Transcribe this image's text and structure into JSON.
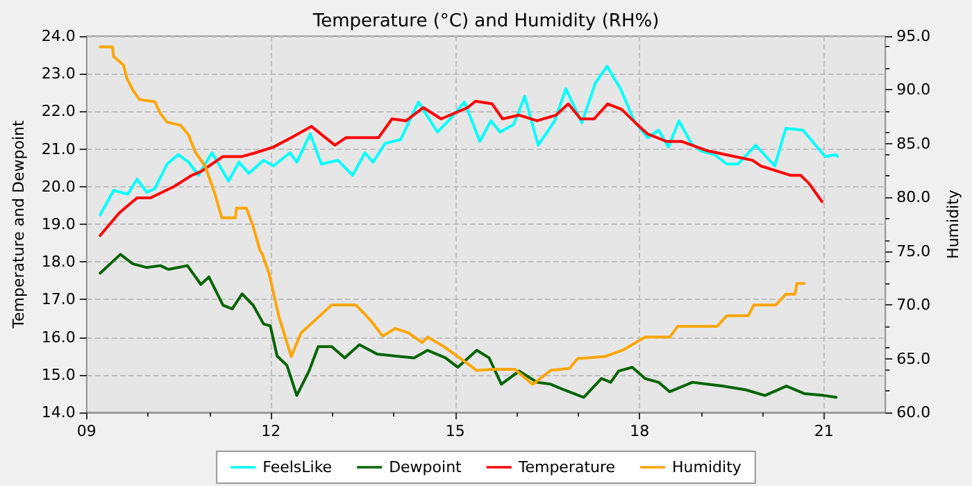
{
  "chart_data": {
    "type": "line",
    "title": "Temperature (°C) and Humidity (RH%)",
    "ylabel": "Temperature and Dewpoint",
    "y2label": "Humidity",
    "xlim": [
      9,
      22
    ],
    "xticks": [
      {
        "value": 9,
        "label": "09"
      },
      {
        "value": 12,
        "label": "12"
      },
      {
        "value": 15,
        "label": "15"
      },
      {
        "value": 18,
        "label": "18"
      },
      {
        "value": 21,
        "label": "21"
      }
    ],
    "ylim": [
      14,
      24
    ],
    "yticks": [
      {
        "value": 14,
        "label": "14.0"
      },
      {
        "value": 15,
        "label": "15.0"
      },
      {
        "value": 16,
        "label": "16.0"
      },
      {
        "value": 17,
        "label": "17.0"
      },
      {
        "value": 18,
        "label": "18.0"
      },
      {
        "value": 19,
        "label": "19.0"
      },
      {
        "value": 20,
        "label": "20.0"
      },
      {
        "value": 21,
        "label": "21.0"
      },
      {
        "value": 22,
        "label": "22.0"
      },
      {
        "value": 23,
        "label": "23.0"
      },
      {
        "value": 24,
        "label": "24.0"
      }
    ],
    "y2lim": [
      60,
      95
    ],
    "y2ticks": [
      {
        "value": 60,
        "label": "60.0"
      },
      {
        "value": 65,
        "label": "65.0"
      },
      {
        "value": 70,
        "label": "70.0"
      },
      {
        "value": 75,
        "label": "75.0"
      },
      {
        "value": 80,
        "label": "80.0"
      },
      {
        "value": 85,
        "label": "85.0"
      },
      {
        "value": 90,
        "label": "90.0"
      },
      {
        "value": 95,
        "label": "95.0"
      }
    ],
    "grid": true,
    "legend": "bottom",
    "marker": "none",
    "line_style": "solid",
    "series": [
      {
        "name": "FeelsLike",
        "color": "#00ffff",
        "x": [
          9.22,
          9.44,
          9.67,
          9.82,
          9.98,
          10.11,
          10.31,
          10.49,
          10.66,
          10.82,
          11.04,
          11.31,
          11.48,
          11.64,
          11.88,
          12.04,
          12.31,
          12.42,
          12.64,
          12.82,
          13.09,
          13.33,
          13.53,
          13.66,
          13.86,
          14.11,
          14.4,
          14.71,
          14.89,
          15.15,
          15.4,
          15.58,
          15.73,
          15.95,
          16.13,
          16.35,
          16.62,
          16.8,
          17.06,
          17.28,
          17.47,
          17.69,
          17.91,
          18.13,
          18.31,
          18.47,
          18.64,
          18.84,
          19.0,
          19.22,
          19.42,
          19.6,
          19.89,
          20.2,
          20.38,
          20.66,
          20.84,
          21.02,
          21.2,
          21.22
        ],
        "values": [
          19.25,
          19.9,
          19.8,
          20.2,
          19.85,
          19.95,
          20.6,
          20.85,
          20.65,
          20.3,
          20.9,
          20.15,
          20.65,
          20.35,
          20.7,
          20.55,
          20.9,
          20.65,
          21.4,
          20.6,
          20.7,
          20.3,
          20.9,
          20.65,
          21.15,
          21.25,
          22.25,
          21.45,
          21.75,
          22.25,
          21.2,
          21.75,
          21.45,
          21.65,
          22.4,
          21.1,
          21.75,
          22.6,
          21.7,
          22.75,
          23.2,
          22.6,
          21.75,
          21.3,
          21.5,
          21.05,
          21.75,
          21.15,
          20.95,
          20.85,
          20.6,
          20.6,
          21.1,
          20.55,
          21.55,
          21.5,
          21.15,
          20.8,
          20.85,
          20.8
        ]
      },
      {
        "name": "Dewpoint",
        "color": "#006400",
        "x": [
          9.22,
          9.55,
          9.75,
          9.98,
          10.2,
          10.33,
          10.64,
          10.86,
          10.99,
          11.22,
          11.37,
          11.53,
          11.71,
          11.88,
          11.99,
          12.1,
          12.26,
          12.42,
          12.62,
          12.77,
          12.99,
          13.2,
          13.44,
          13.73,
          14.02,
          14.33,
          14.55,
          14.84,
          15.04,
          15.35,
          15.55,
          15.75,
          16.04,
          16.33,
          16.55,
          16.77,
          17.09,
          17.38,
          17.53,
          17.66,
          17.88,
          18.09,
          18.31,
          18.49,
          18.86,
          19.35,
          19.73,
          20.04,
          20.39,
          20.68,
          21.0,
          21.2
        ],
        "values": [
          17.7,
          18.2,
          17.95,
          17.85,
          17.9,
          17.8,
          17.9,
          17.4,
          17.6,
          16.85,
          16.75,
          17.15,
          16.85,
          16.35,
          16.3,
          15.5,
          15.25,
          14.45,
          15.1,
          15.75,
          15.75,
          15.45,
          15.8,
          15.55,
          15.5,
          15.45,
          15.65,
          15.45,
          15.2,
          15.65,
          15.45,
          14.75,
          15.1,
          14.8,
          14.75,
          14.6,
          14.4,
          14.9,
          14.8,
          15.1,
          15.2,
          14.9,
          14.8,
          14.55,
          14.8,
          14.7,
          14.6,
          14.45,
          14.7,
          14.5,
          14.45,
          14.4
        ]
      },
      {
        "name": "Temperature",
        "color": "#ff0000",
        "x": [
          9.22,
          9.53,
          9.82,
          10.04,
          10.42,
          10.71,
          10.86,
          11.22,
          11.53,
          11.75,
          12.04,
          12.33,
          12.66,
          13.04,
          13.22,
          13.6,
          13.75,
          13.97,
          14.2,
          14.48,
          14.77,
          15.2,
          15.33,
          15.6,
          15.77,
          16.04,
          16.33,
          16.64,
          16.84,
          17.04,
          17.26,
          17.48,
          17.71,
          17.93,
          18.13,
          18.44,
          18.69,
          19.11,
          19.55,
          19.84,
          19.97,
          20.46,
          20.62,
          20.75,
          20.97
        ],
        "values": [
          18.7,
          19.3,
          19.7,
          19.7,
          20.0,
          20.3,
          20.4,
          20.8,
          20.8,
          20.9,
          21.05,
          21.3,
          21.6,
          21.1,
          21.3,
          21.3,
          21.3,
          21.8,
          21.75,
          22.1,
          21.8,
          22.1,
          22.27,
          22.2,
          21.8,
          21.9,
          21.75,
          21.9,
          22.2,
          21.8,
          21.8,
          22.2,
          22.05,
          21.7,
          21.4,
          21.2,
          21.2,
          20.95,
          20.8,
          20.7,
          20.55,
          20.3,
          20.3,
          20.1,
          19.6
        ]
      },
      {
        "name": "Humidity",
        "color": "#ffa500",
        "axis": "y2",
        "x": [
          9.22,
          9.42,
          9.44,
          9.6,
          9.66,
          9.75,
          9.86,
          10.11,
          10.2,
          10.31,
          10.53,
          10.66,
          10.77,
          10.93,
          11.09,
          11.2,
          11.42,
          11.44,
          11.6,
          11.71,
          11.82,
          11.86,
          11.97,
          12.13,
          12.33,
          12.49,
          12.99,
          13.38,
          13.6,
          13.82,
          14.02,
          14.24,
          14.46,
          14.55,
          14.82,
          15.09,
          15.35,
          15.6,
          15.97,
          16.26,
          16.55,
          16.86,
          16.99,
          17.44,
          17.73,
          18.09,
          18.49,
          18.62,
          19.26,
          19.42,
          19.77,
          19.86,
          20.22,
          20.38,
          20.53,
          20.56,
          20.68
        ],
        "values": [
          94.0,
          94.0,
          93.1,
          92.3,
          91.0,
          90.0,
          89.1,
          88.9,
          87.8,
          87.0,
          86.7,
          85.8,
          84.2,
          82.9,
          80.3,
          78.1,
          78.1,
          79.0,
          79.0,
          77.3,
          75.1,
          74.7,
          72.9,
          68.9,
          65.2,
          67.4,
          70.0,
          70.0,
          68.7,
          67.1,
          67.8,
          67.4,
          66.5,
          67.0,
          66.1,
          65.0,
          63.9,
          64.0,
          64.0,
          62.6,
          63.9,
          64.1,
          65.0,
          65.2,
          65.8,
          67.0,
          67.0,
          68.0,
          68.0,
          69.0,
          69.0,
          70.0,
          70.0,
          71.0,
          71.0,
          72.0,
          72.0
        ]
      }
    ]
  }
}
